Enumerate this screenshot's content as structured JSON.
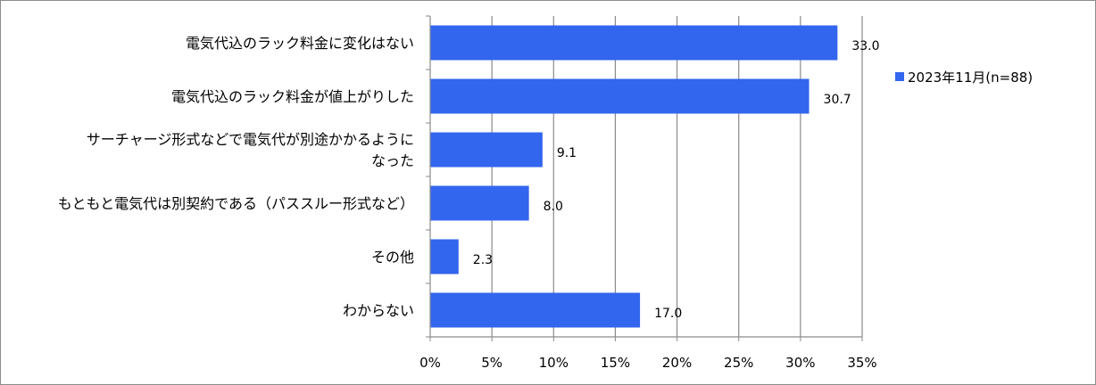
{
  "chart_data": {
    "type": "bar",
    "orientation": "horizontal",
    "categories": [
      [
        "電気代込のラック料金に変化はない"
      ],
      [
        "電気代込のラック料金が値上がりした"
      ],
      [
        "サーチャージ形式などで電気代が別途かかるように",
        "なった"
      ],
      [
        "もともと電気代は別契約である（パススルー形式など）"
      ],
      [
        "その他"
      ],
      [
        "わからない"
      ]
    ],
    "series": [
      {
        "name": "2023年11月(n=88)",
        "values": [
          33.0,
          30.7,
          9.1,
          8.0,
          2.3,
          17.0
        ],
        "color": "#3366ee"
      }
    ],
    "data_labels": [
      "33.0",
      "30.7",
      "9.1",
      "8.0",
      "2.3",
      "17.0"
    ],
    "xlim": [
      0,
      35
    ],
    "x_ticks": [
      0,
      5,
      10,
      15,
      20,
      25,
      30,
      35
    ],
    "x_tick_labels": [
      "0%",
      "5%",
      "10%",
      "15%",
      "20%",
      "25%",
      "30%",
      "35%"
    ],
    "grid": "vertical",
    "legend_position": "right"
  }
}
